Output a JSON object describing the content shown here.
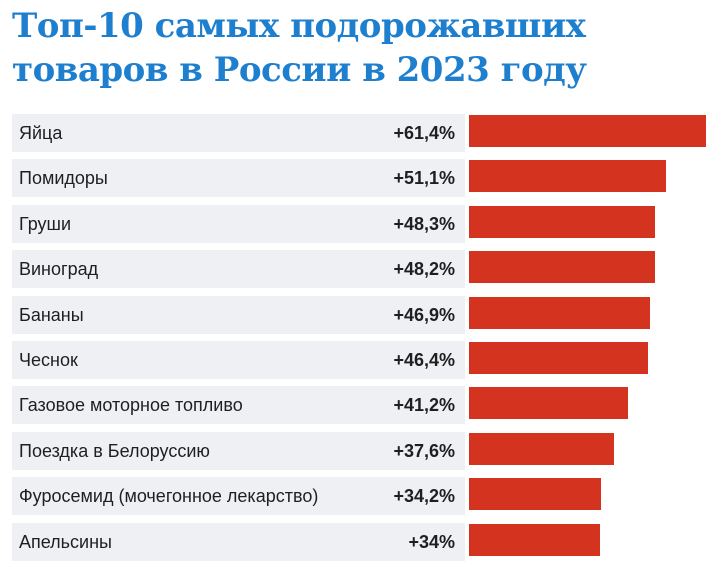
{
  "title": "Топ-10 самых подорожавших товаров в России в 2023 году",
  "colors": {
    "title": "#1e7fce",
    "bar": "#d4341f",
    "row_background": "#eef0f4",
    "text": "#1f1f1f"
  },
  "chart_data": {
    "type": "bar",
    "orientation": "horizontal",
    "title": "Топ-10 самых подорожавших товаров в России в 2023 году",
    "categories": [
      "Яйца",
      "Помидоры",
      "Груши",
      "Виноград",
      "Бананы",
      "Чеснок",
      "Газовое моторное топливо",
      "Поездка в Белоруссию",
      "Фуросемид (мочегонное лекарство)",
      "Апельсины"
    ],
    "values": [
      61.4,
      51.1,
      48.3,
      48.2,
      46.9,
      46.4,
      41.2,
      37.6,
      34.2,
      34
    ],
    "value_labels": [
      "+61,4%",
      "+51,1%",
      "+48,3%",
      "+48,2%",
      "+46,9%",
      "+46,4%",
      "+41,2%",
      "+37,6%",
      "+34,2%",
      "+34%"
    ],
    "unit": "%",
    "xlim": [
      0,
      61.4
    ],
    "grid": false,
    "legend": "none"
  }
}
